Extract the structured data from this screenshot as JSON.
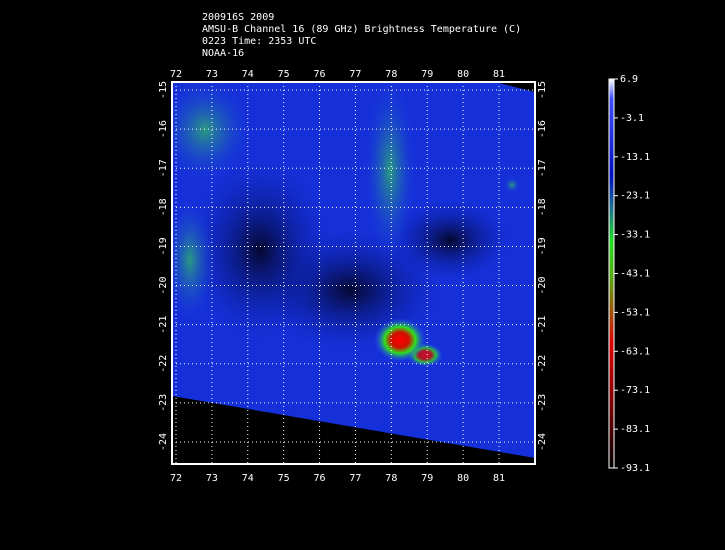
{
  "header": {
    "lines": [
      "200916S 2009",
      "AMSU-B Channel 16 (89 GHz) Brightness Temperature (C)",
      "0223 Time: 2353 UTC",
      "NOAA-16"
    ]
  },
  "map": {
    "lon_ticks": [
      72,
      73,
      74,
      75,
      76,
      77,
      78,
      79,
      80,
      81
    ],
    "lat_ticks": [
      -15,
      -16,
      -17,
      -18,
      -19,
      -20,
      -21,
      -22,
      -23,
      -24
    ]
  },
  "colorbar": {
    "ticks": [
      6.9,
      -3.1,
      -13.1,
      -23.1,
      -33.1,
      -43.1,
      -53.1,
      -63.1,
      -73.1,
      -83.1,
      -93.1
    ]
  }
}
